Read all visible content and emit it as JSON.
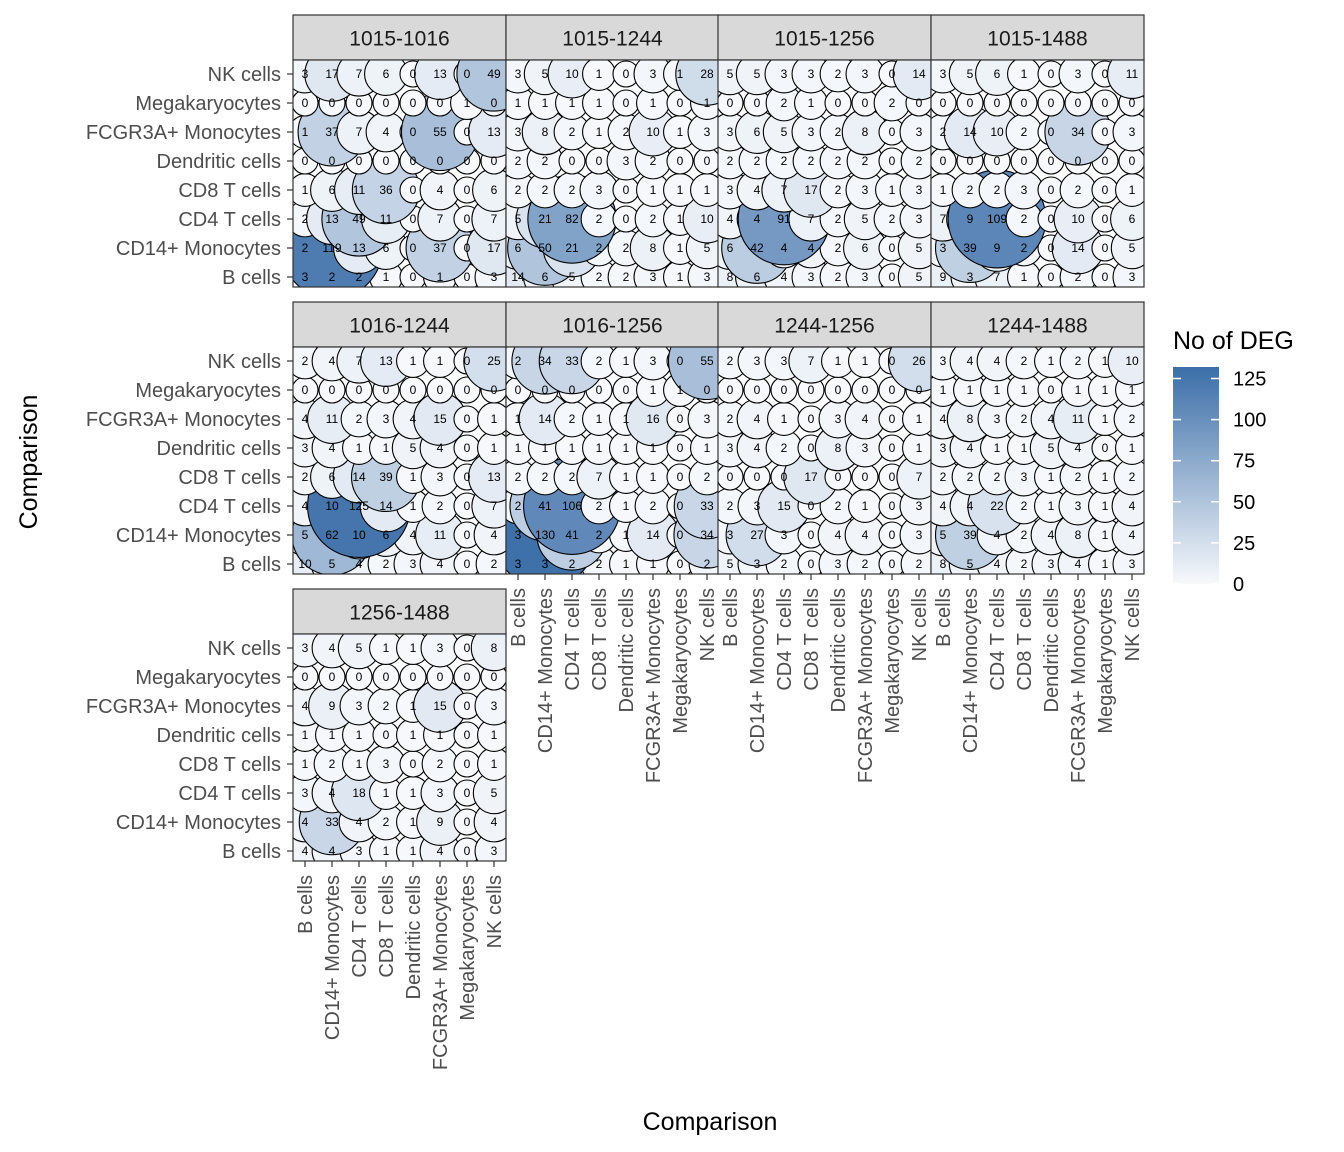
{
  "chart_data": {
    "type": "heatmap",
    "title": "",
    "xlabel": "Comparison",
    "ylabel": "Comparison",
    "cell_types": [
      "B cells",
      "CD14+ Monocytes",
      "CD4 T cells",
      "CD8 T cells",
      "Dendritic cells",
      "FCGR3A+ Monocytes",
      "Megakaryocytes",
      "NK cells"
    ],
    "row_order_top_to_bottom": [
      "NK cells",
      "Megakaryocytes",
      "FCGR3A+ Monocytes",
      "Dendritic cells",
      "CD8 T cells",
      "CD4 T cells",
      "CD14+ Monocytes",
      "B cells"
    ],
    "legend": {
      "title": "No of DEG",
      "ticks": [
        0,
        25,
        50,
        75,
        100,
        125
      ],
      "range": [
        0,
        132
      ],
      "low_color": "#f7f9fc",
      "high_color": "#3b6ea8"
    },
    "panels": [
      {
        "label": "1015-1016",
        "values": [
          [
            3,
            17,
            7,
            6,
            0,
            13,
            0,
            49
          ],
          [
            0,
            0,
            0,
            0,
            0,
            0,
            1,
            0
          ],
          [
            1,
            37,
            7,
            4,
            0,
            55,
            0,
            13
          ],
          [
            0,
            0,
            0,
            0,
            0,
            0,
            0,
            0
          ],
          [
            1,
            6,
            11,
            36,
            0,
            4,
            0,
            6
          ],
          [
            2,
            13,
            49,
            11,
            0,
            7,
            0,
            7
          ],
          [
            2,
            119,
            13,
            6,
            0,
            37,
            0,
            17
          ],
          [
            3,
            2,
            2,
            1,
            0,
            1,
            0,
            3
          ]
        ]
      },
      {
        "label": "1015-1244",
        "values": [
          [
            3,
            5,
            10,
            1,
            0,
            3,
            1,
            28
          ],
          [
            1,
            1,
            1,
            1,
            0,
            1,
            0,
            1
          ],
          [
            3,
            8,
            2,
            1,
            2,
            10,
            1,
            3
          ],
          [
            2,
            2,
            0,
            0,
            3,
            2,
            0,
            0
          ],
          [
            2,
            2,
            2,
            3,
            0,
            1,
            1,
            1
          ],
          [
            5,
            21,
            82,
            2,
            0,
            2,
            1,
            10
          ],
          [
            6,
            50,
            21,
            2,
            2,
            8,
            1,
            5
          ],
          [
            14,
            6,
            5,
            2,
            2,
            3,
            1,
            3
          ]
        ]
      },
      {
        "label": "1015-1256",
        "values": [
          [
            5,
            5,
            3,
            3,
            2,
            3,
            0,
            14
          ],
          [
            0,
            0,
            2,
            1,
            0,
            0,
            2,
            0
          ],
          [
            3,
            6,
            5,
            3,
            2,
            8,
            0,
            3
          ],
          [
            2,
            2,
            2,
            2,
            2,
            2,
            0,
            2
          ],
          [
            3,
            4,
            7,
            17,
            2,
            3,
            1,
            3
          ],
          [
            4,
            4,
            91,
            7,
            2,
            5,
            2,
            3
          ],
          [
            6,
            42,
            4,
            4,
            2,
            6,
            0,
            5
          ],
          [
            8,
            6,
            4,
            3,
            2,
            3,
            0,
            5
          ]
        ]
      },
      {
        "label": "1015-1488",
        "values": [
          [
            3,
            5,
            6,
            1,
            0,
            3,
            0,
            11
          ],
          [
            0,
            0,
            0,
            0,
            0,
            0,
            0,
            0
          ],
          [
            2,
            14,
            10,
            2,
            0,
            34,
            0,
            3
          ],
          [
            0,
            0,
            0,
            0,
            0,
            0,
            0,
            0
          ],
          [
            1,
            2,
            2,
            3,
            0,
            2,
            0,
            1
          ],
          [
            7,
            9,
            109,
            2,
            0,
            10,
            0,
            6
          ],
          [
            3,
            39,
            9,
            2,
            0,
            14,
            0,
            5
          ],
          [
            9,
            3,
            7,
            1,
            0,
            2,
            0,
            3
          ]
        ]
      },
      {
        "label": "1016-1244",
        "values": [
          [
            2,
            4,
            7,
            13,
            1,
            1,
            0,
            25
          ],
          [
            0,
            0,
            0,
            0,
            0,
            0,
            0,
            0
          ],
          [
            4,
            11,
            2,
            3,
            4,
            15,
            0,
            1
          ],
          [
            3,
            4,
            1,
            1,
            5,
            4,
            0,
            1
          ],
          [
            2,
            6,
            14,
            39,
            1,
            3,
            0,
            13
          ],
          [
            4,
            10,
            125,
            14,
            1,
            2,
            0,
            7
          ],
          [
            5,
            62,
            10,
            6,
            4,
            11,
            0,
            4
          ],
          [
            10,
            5,
            4,
            2,
            3,
            4,
            0,
            2
          ]
        ]
      },
      {
        "label": "1016-1256",
        "values": [
          [
            2,
            34,
            33,
            2,
            1,
            3,
            0,
            55
          ],
          [
            0,
            0,
            0,
            0,
            0,
            1,
            1,
            0
          ],
          [
            1,
            14,
            2,
            1,
            1,
            16,
            0,
            3
          ],
          [
            1,
            1,
            1,
            1,
            1,
            1,
            0,
            1
          ],
          [
            2,
            2,
            2,
            7,
            1,
            1,
            0,
            2
          ],
          [
            2,
            41,
            106,
            2,
            1,
            2,
            0,
            33
          ],
          [
            3,
            130,
            41,
            2,
            1,
            14,
            0,
            34
          ],
          [
            3,
            3,
            2,
            2,
            1,
            1,
            0,
            2
          ]
        ]
      },
      {
        "label": "1244-1256",
        "values": [
          [
            2,
            3,
            3,
            7,
            1,
            1,
            0,
            26
          ],
          [
            0,
            0,
            0,
            0,
            0,
            0,
            0,
            0
          ],
          [
            2,
            4,
            1,
            0,
            3,
            4,
            0,
            1
          ],
          [
            3,
            4,
            2,
            0,
            8,
            3,
            0,
            1
          ],
          [
            0,
            0,
            0,
            17,
            0,
            0,
            0,
            7
          ],
          [
            2,
            3,
            15,
            0,
            2,
            1,
            0,
            3
          ],
          [
            3,
            27,
            3,
            0,
            4,
            4,
            0,
            3
          ],
          [
            5,
            3,
            2,
            0,
            3,
            2,
            0,
            2
          ]
        ]
      },
      {
        "label": "1244-1488",
        "values": [
          [
            3,
            4,
            4,
            2,
            1,
            2,
            1,
            10
          ],
          [
            1,
            1,
            1,
            1,
            0,
            1,
            1,
            1
          ],
          [
            4,
            8,
            3,
            2,
            4,
            11,
            1,
            2
          ],
          [
            3,
            4,
            1,
            1,
            5,
            4,
            0,
            1
          ],
          [
            2,
            2,
            2,
            3,
            1,
            2,
            1,
            2
          ],
          [
            4,
            4,
            22,
            2,
            1,
            3,
            1,
            4
          ],
          [
            5,
            39,
            4,
            2,
            4,
            8,
            1,
            4
          ],
          [
            8,
            5,
            4,
            2,
            3,
            4,
            1,
            3
          ]
        ]
      },
      {
        "label": "1256-1488",
        "values": [
          [
            3,
            4,
            5,
            1,
            1,
            3,
            0,
            8
          ],
          [
            0,
            0,
            0,
            0,
            0,
            0,
            0,
            0
          ],
          [
            4,
            9,
            3,
            2,
            1,
            15,
            0,
            3
          ],
          [
            1,
            1,
            1,
            0,
            1,
            1,
            0,
            1
          ],
          [
            1,
            2,
            1,
            3,
            0,
            2,
            0,
            1
          ],
          [
            3,
            4,
            18,
            1,
            1,
            3,
            0,
            5
          ],
          [
            4,
            33,
            4,
            2,
            1,
            9,
            0,
            4
          ],
          [
            4,
            4,
            3,
            1,
            1,
            4,
            0,
            3
          ]
        ]
      }
    ]
  }
}
